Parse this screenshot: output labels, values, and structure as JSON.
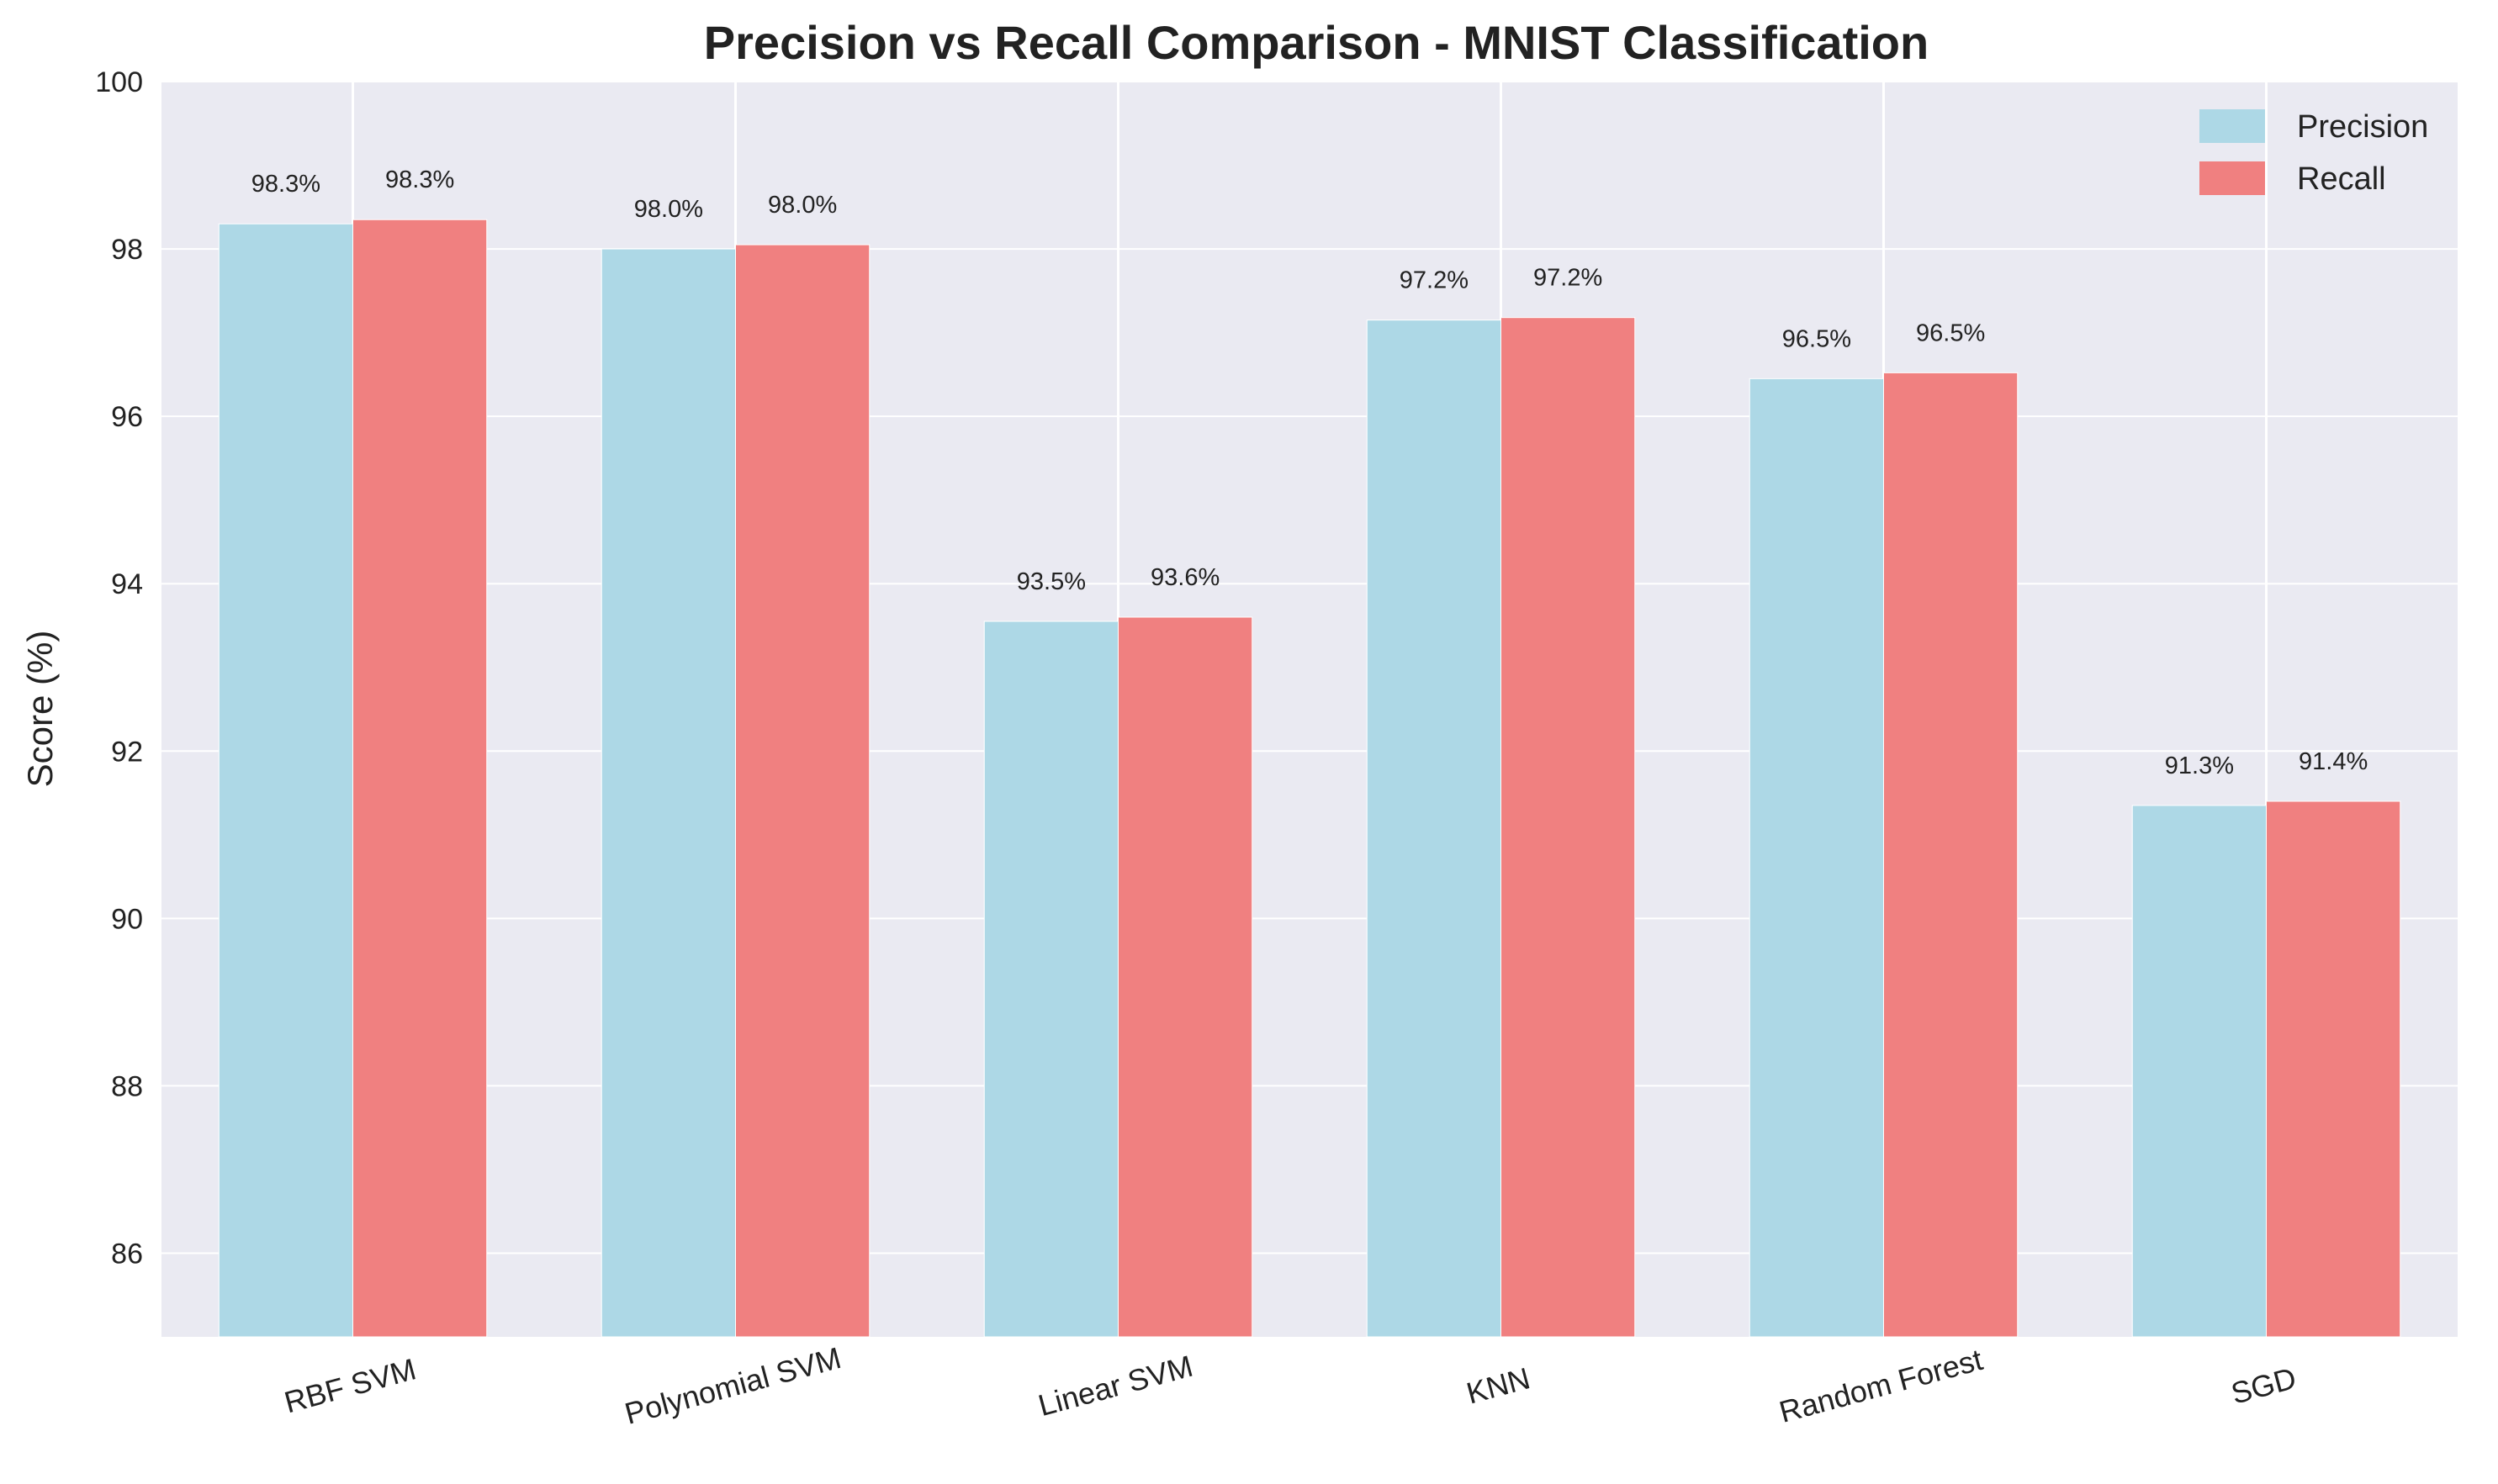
{
  "chart_data": {
    "type": "bar",
    "title": "Precision vs Recall Comparison - MNIST Classification",
    "xlabel": "",
    "ylabel": "Score (%)",
    "ylim": [
      85,
      100
    ],
    "yticks": [
      86,
      88,
      90,
      92,
      94,
      96,
      98,
      100
    ],
    "categories": [
      "RBF SVM",
      "Polynomial SVM",
      "Linear SVM",
      "KNN",
      "Random Forest",
      "SGD"
    ],
    "series": [
      {
        "name": "Precision",
        "color": "#add8e6",
        "values": [
          98.3,
          98.0,
          93.55,
          97.15,
          96.45,
          91.35
        ],
        "labels": [
          "98.3%",
          "98.0%",
          "93.5%",
          "97.2%",
          "96.5%",
          "91.3%"
        ]
      },
      {
        "name": "Recall",
        "color": "#f08080",
        "values": [
          98.35,
          98.05,
          93.6,
          97.18,
          96.52,
          91.4
        ],
        "labels": [
          "98.3%",
          "98.0%",
          "93.6%",
          "97.2%",
          "96.5%",
          "91.4%"
        ]
      }
    ],
    "grid": true,
    "legend_position": "top-right",
    "background_color": "#eaeaf2",
    "xtick_rotation": "slanted"
  }
}
